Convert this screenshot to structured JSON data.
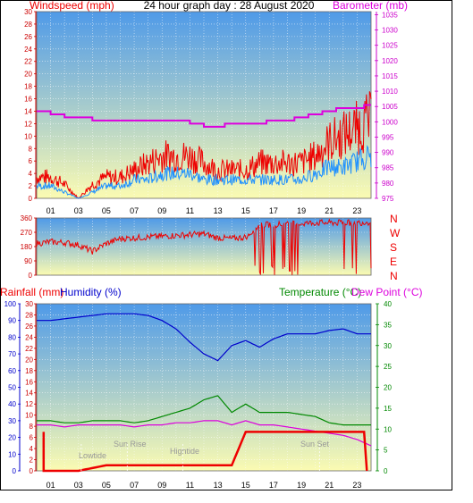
{
  "title": "24 hour graph day : 28 August 2020",
  "colors": {
    "wind": "#ee0000",
    "gust_line": "#1e90ff",
    "barometer": "#dd00dd",
    "direction": "#ee0000",
    "rain": "#ee0000",
    "humidity": "#0000cc",
    "temperature": "#008800",
    "dewpoint": "#dd00dd",
    "sky_top": "#4f9ae8",
    "sky_bottom": "#fbfbb2"
  },
  "x_tick_labels": [
    "01",
    "03",
    "05",
    "07",
    "09",
    "11",
    "13",
    "15",
    "17",
    "19",
    "21",
    "23"
  ],
  "panel_wind": {
    "left_axis_title": "Windspeed (mph)",
    "right_axis_title": "Barometer (mb)",
    "left_ticks": [
      "0",
      "2",
      "4",
      "6",
      "8",
      "10",
      "12",
      "14",
      "16",
      "18",
      "20",
      "22",
      "24",
      "26",
      "28",
      "30"
    ],
    "right_ticks": [
      "975",
      "980",
      "985",
      "990",
      "995",
      "1000",
      "1005",
      "1010",
      "1015",
      "1020",
      "1025",
      "1030",
      "1035"
    ]
  },
  "panel_direction": {
    "left_ticks": [
      "0",
      "90",
      "180",
      "270",
      "360"
    ],
    "right_labels": [
      "N",
      "W",
      "S",
      "E",
      "N"
    ]
  },
  "panel_bottom": {
    "rainfall_title": "Rainfall (mm)",
    "humidity_title": "Humidity (%)",
    "temperature_title": "Temperature (°C)",
    "dewpoint_title": "Dew Point (°C)",
    "humidity_ticks": [
      "0",
      "10",
      "20",
      "30",
      "40",
      "50",
      "60",
      "70",
      "80",
      "90",
      "100"
    ],
    "rain_ticks": [
      "0",
      "2",
      "4",
      "6",
      "8",
      "10",
      "12",
      "14",
      "16",
      "18",
      "20",
      "22",
      "24",
      "26",
      "28",
      "30"
    ],
    "temp_ticks": [
      "0",
      "5",
      "10",
      "15",
      "20",
      "25",
      "30",
      "35",
      "40"
    ],
    "events": {
      "lowtide": "Lowtide",
      "sunrise": "Sun Rise",
      "hightide": "Hightide",
      "sunset": "Sun Set"
    }
  },
  "chart_data": [
    {
      "type": "line",
      "title": "24 hour graph day : 28 August 2020",
      "ylabel": "Windspeed (mph)",
      "y2label": "Barometer (mb)",
      "x": [
        0,
        1,
        2,
        3,
        4,
        5,
        6,
        7,
        8,
        9,
        10,
        11,
        12,
        13,
        14,
        15,
        16,
        17,
        18,
        19,
        20,
        21,
        22,
        23,
        24
      ],
      "ylim": [
        0,
        30
      ],
      "y2lim": [
        975,
        1035
      ],
      "grid": true,
      "series": [
        {
          "axis": "left",
          "values": [
            3,
            3,
            2,
            0,
            2,
            3,
            3,
            4,
            5,
            6,
            6,
            6,
            5,
            4,
            4,
            4,
            5,
            5,
            5,
            5,
            6,
            8,
            9,
            10,
            11
          ]
        },
        {
          "axis": "left",
          "values": [
            2,
            2,
            1,
            0,
            1,
            2,
            2,
            3,
            3,
            4,
            4,
            4,
            3,
            3,
            3,
            3,
            3,
            3,
            3,
            3,
            4,
            5,
            5,
            6,
            7
          ]
        },
        {
          "axis": "right",
          "values": [
            1003,
            1002,
            1001,
            1001,
            1000,
            1000,
            1000,
            1000,
            1000,
            1000,
            1000,
            999,
            998,
            998,
            999,
            999,
            999,
            1000,
            1000,
            1001,
            1002,
            1003,
            1004,
            1004,
            1005
          ]
        }
      ]
    },
    {
      "type": "line",
      "ylabel": "Wind direction",
      "x": [
        0,
        1,
        2,
        3,
        4,
        5,
        6,
        7,
        8,
        9,
        10,
        11,
        12,
        13,
        14,
        15,
        16,
        17,
        18,
        19,
        20,
        21,
        22,
        23,
        24
      ],
      "ylim": [
        0,
        360
      ],
      "values": [
        200,
        210,
        205,
        190,
        150,
        200,
        230,
        235,
        240,
        245,
        250,
        255,
        260,
        235,
        230,
        240,
        315,
        320,
        320,
        325,
        330,
        330,
        330,
        330,
        335
      ]
    },
    {
      "type": "line",
      "ylabel": "Rainfall (mm)",
      "y2label": "Temperature (°C)",
      "x": [
        0,
        1,
        2,
        3,
        4,
        5,
        6,
        7,
        8,
        9,
        10,
        11,
        12,
        13,
        14,
        15,
        16,
        17,
        18,
        19,
        20,
        21,
        22,
        23,
        24
      ],
      "ylim": [
        0,
        30
      ],
      "y2lim": [
        0,
        40
      ],
      "grid": true,
      "series": [
        {
          "axis": "humidity",
          "values": [
            90,
            90,
            91,
            92,
            93,
            94,
            94,
            94,
            93,
            90,
            85,
            77,
            70,
            66,
            75,
            78,
            74,
            79,
            82,
            82,
            82,
            84,
            85,
            82,
            82
          ]
        },
        {
          "axis": "right",
          "values": [
            12,
            12,
            11.5,
            11.5,
            12,
            12,
            12,
            11.5,
            12,
            13,
            14,
            15,
            17,
            18,
            14,
            16,
            14,
            14,
            14,
            13.5,
            13,
            11.5,
            11,
            11,
            11
          ]
        },
        {
          "axis": "right",
          "values": [
            11,
            11,
            10.5,
            11,
            11,
            11,
            11,
            10.5,
            11,
            11,
            11.5,
            11.5,
            12,
            12,
            11,
            12,
            11,
            11,
            10.5,
            10,
            9.5,
            9,
            8.5,
            7.5,
            6
          ]
        },
        {
          "axis": "left",
          "values": [
            0,
            0,
            0,
            0,
            0.5,
            1,
            1,
            1,
            1,
            1,
            1,
            1,
            1,
            1,
            1,
            7,
            7,
            7,
            7,
            7,
            7,
            7,
            7,
            7,
            7
          ]
        }
      ]
    }
  ]
}
